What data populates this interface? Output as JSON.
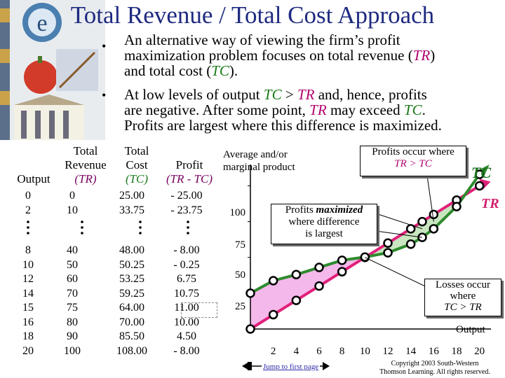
{
  "slide": {
    "title": "Total Revenue / Total Cost Approach",
    "bullet1_a": "An alternative way of viewing the firm’s profit",
    "bullet1_b": "maximization problem focuses on total revenue (",
    "bullet1_tr": "TR",
    "bullet1_c": ")",
    "bullet1_d": "and total cost (",
    "bullet1_tc": "TC",
    "bullet1_e": ").",
    "bullet2_a": "At low levels of output ",
    "bullet2_tc": "TC",
    "bullet2_gt": " > ",
    "bullet2_tr": "TR",
    "bullet2_b": " and, hence, profits",
    "bullet2_c": "are negative.  After some point, ",
    "bullet2_tr2": "TR",
    "bullet2_d": " may exceed ",
    "bullet2_tc2": "TC",
    "bullet2_e": ".",
    "bullet2_f": "Profits are largest where this difference is maximized.",
    "bullet_marker": "•"
  },
  "table": {
    "headers": {
      "output": "Output",
      "tr_line1": "Total",
      "tr_line2": "Revenue",
      "tr_line3": "(TR)",
      "tc_line1": "Total",
      "tc_line2": "Cost",
      "tc_line3": "(TC)",
      "profit_line1": "Profit",
      "profit_line2": "(TR - TC)"
    },
    "top_rows": [
      {
        "output": "0",
        "tr": "0",
        "tc": "25.00",
        "profit": "- 25.00"
      },
      {
        "output": "2",
        "tr": "10",
        "tc": "33.75",
        "profit": "- 23.75"
      }
    ],
    "bottom_rows": [
      {
        "output": "8",
        "tr": "40",
        "tc": "48.00",
        "profit": "- 8.00"
      },
      {
        "output": "10",
        "tr": "50",
        "tc": "50.25",
        "profit": "- 0.25"
      },
      {
        "output": "12",
        "tr": "60",
        "tc": "53.25",
        "profit": "6.75"
      },
      {
        "output": "14",
        "tr": "70",
        "tc": "59.25",
        "profit": "10.75"
      },
      {
        "output": "15",
        "tr": "75",
        "tc": "64.00",
        "profit": "11.00"
      },
      {
        "output": "16",
        "tr": "80",
        "tc": "70.00",
        "profit": "10.00"
      },
      {
        "output": "18",
        "tr": "90",
        "tc": "85.50",
        "profit": "4.50"
      },
      {
        "output": "20",
        "tr": "100",
        "tc": "108.00",
        "profit": "- 8.00"
      }
    ]
  },
  "chart": {
    "ylabel_line1": "Average and/or",
    "ylabel_line2": "marginal product",
    "yticks": [
      "100",
      "75",
      "50",
      "25"
    ],
    "xticks": [
      "2",
      "4",
      "6",
      "8",
      "10",
      "12",
      "14",
      "16",
      "18",
      "20"
    ],
    "xlabel": "Output",
    "tc_label": "TC",
    "tr_label": "TR",
    "box_profits_occur_1": "Profits occur where",
    "box_profits_occur_2": "TR > TC",
    "box_max_1": "Profits ",
    "box_max_1b": "maximized",
    "box_max_2": "where difference",
    "box_max_3": "is largest",
    "box_losses_1": "Losses occur",
    "box_losses_2": "where",
    "box_losses_3": "TC > TR",
    "colors": {
      "tc": "#2e8b2e",
      "tr": "#e0207a",
      "profit_fill": "#c8e6c0",
      "loss_fill": "#f5b8ea"
    }
  },
  "chart_data": {
    "type": "line",
    "x": [
      0,
      2,
      4,
      6,
      8,
      10,
      12,
      14,
      15,
      16,
      18,
      20
    ],
    "series": [
      {
        "name": "TC",
        "values": [
          25.0,
          33.75,
          38,
          43,
          48.0,
          50.25,
          53.25,
          59.25,
          64.0,
          70.0,
          85.5,
          108.0
        ]
      },
      {
        "name": "TR",
        "values": [
          0,
          10,
          20,
          30,
          40,
          50,
          60,
          70,
          75,
          80,
          90,
          100
        ]
      }
    ],
    "xlabel": "Output",
    "ylabel": "Average and/or marginal product",
    "xlim": [
      0,
      21
    ],
    "ylim": [
      0,
      110
    ]
  },
  "footer": {
    "nav_link": "Jump to first page",
    "copyright_1": "Copyright 2003 South-Western",
    "copyright_2": "Thomson Learning. All rights reserved."
  }
}
